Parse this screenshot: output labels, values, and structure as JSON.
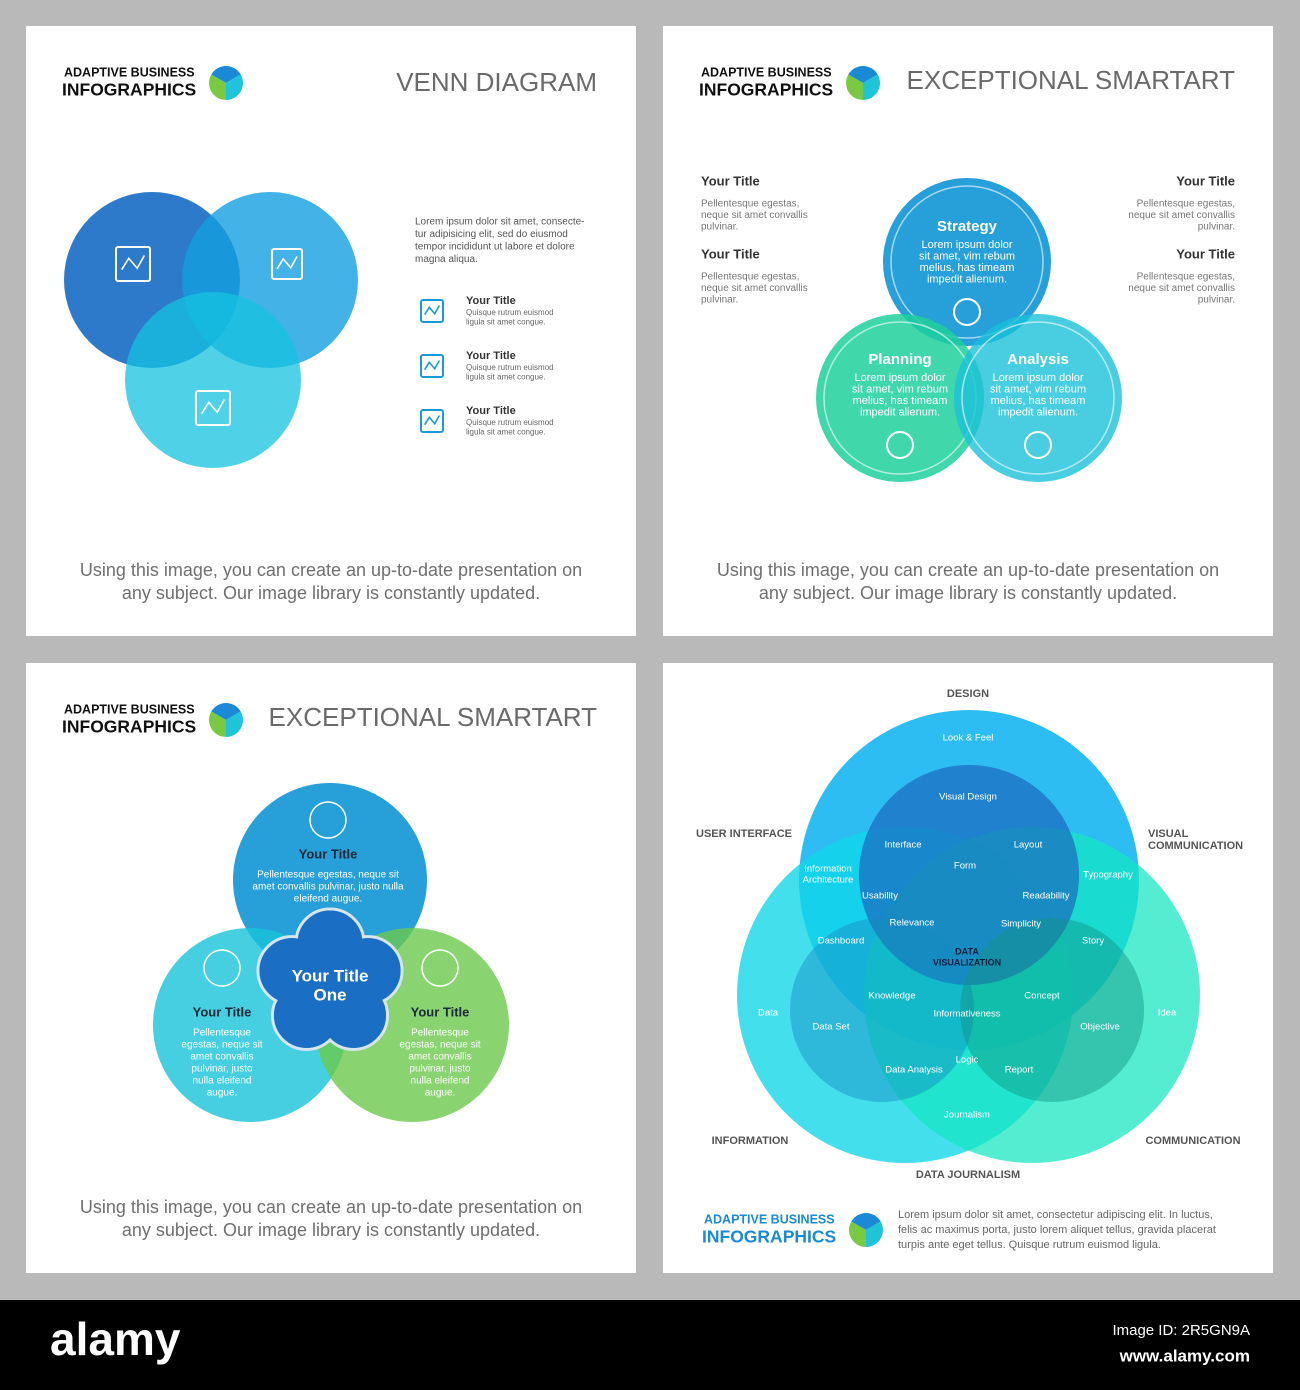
{
  "slides": [
    {
      "brand": {
        "line1": "ADAPTIVE BUSINESS",
        "line2": "INFOGRAPHICS"
      },
      "title": "VENN DIAGRAM",
      "intro": [
        "Lorem ipsum dolor sit amet, consecte-",
        "tur adipisicing elit, sed do eiusmod",
        "tempor incididunt ut labore et dolore",
        "magna aliqua."
      ],
      "items": [
        {
          "title": "Your Title",
          "text": [
            "Quisque rutrum euismod",
            "ligula sit amet congue."
          ]
        },
        {
          "title": "Your Title",
          "text": [
            "Quisque rutrum euismod",
            "ligula sit amet congue."
          ]
        },
        {
          "title": "Your Title",
          "text": [
            "Quisque rutrum euismod",
            "ligula sit amet congue."
          ]
        }
      ],
      "footer": [
        "Using this image, you can create an up-to-date presentation on",
        "any subject. Our image library is constantly updated."
      ]
    },
    {
      "brand": {
        "line1": "ADAPTIVE BUSINESS",
        "line2": "INFOGRAPHICS"
      },
      "title": "EXCEPTIONAL SMARTART",
      "notes": [
        {
          "title": "Your Title",
          "text": [
            "Pellentesque egestas,",
            "neque sit amet convallis",
            "pulvinar."
          ]
        },
        {
          "title": "Your Title",
          "text": [
            "Pellentesque egestas,",
            "neque sit amet convallis",
            "pulvinar."
          ]
        },
        {
          "title": "Your Title",
          "text": [
            "Pellentesque egestas,",
            "neque sit amet convallis",
            "pulvinar."
          ]
        },
        {
          "title": "Your Title",
          "text": [
            "Pellentesque egestas,",
            "neque sit amet convallis",
            "pulvinar."
          ]
        }
      ],
      "circles": [
        {
          "title": "Strategy",
          "text": [
            "Lorem ipsum dolor",
            "sit amet, vim rebum",
            "melius, has timeam",
            "impedit alienum."
          ]
        },
        {
          "title": "Planning",
          "text": [
            "Lorem ipsum dolor",
            "sit amet, vim rebum",
            "melius, has timeam",
            "impedit alienum."
          ]
        },
        {
          "title": "Analysis",
          "text": [
            "Lorem ipsum dolor",
            "sit amet, vim rebum",
            "melius, has timeam",
            "impedit alienum."
          ]
        }
      ],
      "footer": [
        "Using this image, you can create an up-to-date presentation on",
        "any subject. Our image library is constantly updated."
      ]
    },
    {
      "brand": {
        "line1": "ADAPTIVE BUSINESS",
        "line2": "INFOGRAPHICS"
      },
      "title": "EXCEPTIONAL SMARTART",
      "center": [
        "Your Title",
        "One"
      ],
      "circles": [
        {
          "title": "Your Title",
          "text": [
            "Pellentesque egestas, neque sit",
            "amet convallis pulvinar, justo nulla",
            "eleifend augue."
          ]
        },
        {
          "title": "Your Title",
          "text": [
            "Pellentesque",
            "egestas, neque sit",
            "amet convallis",
            "pulvinar, justo",
            "nulla eleifend",
            "augue."
          ]
        },
        {
          "title": "Your Title",
          "text": [
            "Pellentesque",
            "egestas, neque sit",
            "amet convallis",
            "pulvinar, justo",
            "nulla eleifend",
            "augue."
          ]
        }
      ],
      "footer": [
        "Using this image, you can create an up-to-date presentation on",
        "any subject. Our image library is constantly updated."
      ]
    },
    {
      "labels": [
        [
          "DESIGN"
        ],
        [
          "USER INTERFACE"
        ],
        [
          "VISUAL",
          "COMMUNICATION"
        ],
        [
          "INFORMATION"
        ],
        [
          "COMMUNICATION"
        ],
        [
          "DATA JOURNALISM"
        ]
      ],
      "terms": [
        [
          "Look & Feel"
        ],
        [
          "Visual Design"
        ],
        [
          "Interface"
        ],
        [
          "Layout"
        ],
        [
          "Form"
        ],
        [
          "Information",
          "Architecture"
        ],
        [
          "Typography"
        ],
        [
          "Usability"
        ],
        [
          "Readability"
        ],
        [
          "Relevance"
        ],
        [
          "Simplicity"
        ],
        [
          "DATA",
          "VISUALIZATION"
        ],
        [
          "Dashboard"
        ],
        [
          "Story"
        ],
        [
          "Knowledge"
        ],
        [
          "Concept"
        ],
        [
          "Data"
        ],
        [
          "Idea"
        ],
        [
          "Informativeness"
        ],
        [
          "Data Set"
        ],
        [
          "Objective"
        ],
        [
          "Logic"
        ],
        [
          "Data Analysis"
        ],
        [
          "Report"
        ],
        [
          "Journalism"
        ]
      ],
      "brand": {
        "line1": "ADAPTIVE BUSINESS",
        "line2": "INFOGRAPHICS"
      },
      "text": [
        "Lorem ipsum dolor sit amet, consectetur adipiscing elit. In luctus,",
        "felis ac maximus porta, justo lorem aliquet tellus, gravida placerat",
        "turpis ante eget tellus. Quisque rutrum euismod ligula."
      ]
    }
  ],
  "stock": {
    "logo": "alamy",
    "image_id": "Image ID: 2R5GN9A",
    "url": "www.alamy.com"
  }
}
